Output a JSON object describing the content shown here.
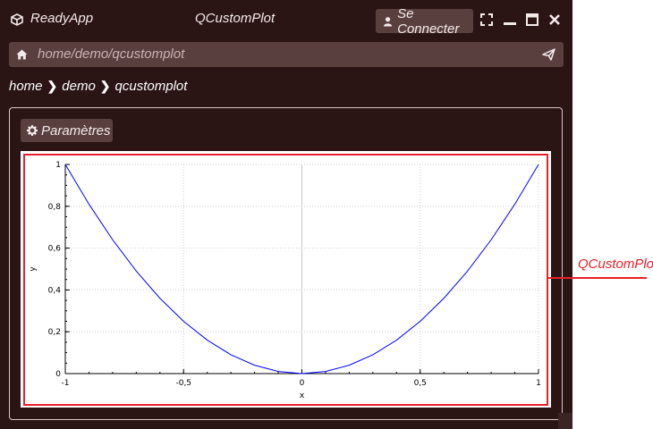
{
  "app": {
    "name": "ReadyApp",
    "window_title": "QCustomPlot",
    "login_label": "Se Connecter"
  },
  "urlbar": {
    "path": "home/demo/qcustomplot"
  },
  "breadcrumb": [
    "home",
    "demo",
    "qcustomplot"
  ],
  "panel": {
    "params_label": "Paramètres"
  },
  "callout": {
    "label": "QCustomPlot"
  },
  "colors": {
    "background": "#2a1414",
    "button": "#5a3f3f",
    "highlight": "#e8202a",
    "curve": "#0000ff"
  },
  "icons": [
    "cube-icon",
    "user-icon",
    "fullscreen-icon",
    "minimize-icon",
    "maximize-icon",
    "close-icon",
    "home-icon",
    "send-icon",
    "gear-icon"
  ],
  "chart_data": {
    "type": "line",
    "xlabel": "x",
    "ylabel": "y",
    "xlim": [
      -1,
      1
    ],
    "ylim": [
      0,
      1
    ],
    "x_ticks": [
      "-1",
      "-0,5",
      "0",
      "0,5",
      "1"
    ],
    "y_ticks": [
      "0",
      "0,2",
      "0,4",
      "0,6",
      "0,8",
      "1"
    ],
    "grid": true,
    "series": [
      {
        "color": "#0000ff",
        "x": [
          -1,
          -0.9,
          -0.8,
          -0.7,
          -0.6,
          -0.5,
          -0.4,
          -0.3,
          -0.2,
          -0.1,
          0,
          0.1,
          0.2,
          0.3,
          0.4,
          0.5,
          0.6,
          0.7,
          0.8,
          0.9,
          1
        ],
        "values": [
          1,
          0.81,
          0.64,
          0.49,
          0.36,
          0.25,
          0.16,
          0.09,
          0.04,
          0.01,
          0,
          0.01,
          0.04,
          0.09,
          0.16,
          0.25,
          0.36,
          0.49,
          0.64,
          0.81,
          1
        ]
      }
    ]
  }
}
